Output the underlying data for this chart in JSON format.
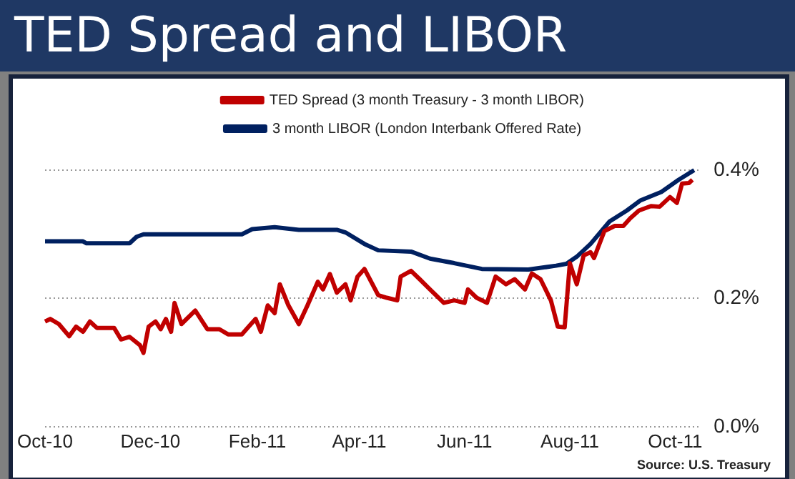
{
  "chart_data": {
    "type": "line",
    "title": "TED Spread and LIBOR",
    "legend": "top",
    "grid": "y",
    "marker": "none",
    "line_style": "solid",
    "xlim": [
      "2010-10-01",
      "2011-10-15"
    ],
    "xticks": [
      {
        "value": "2010-10-01",
        "label": "Oct-10"
      },
      {
        "value": "2010-12-01",
        "label": "Dec-10"
      },
      {
        "value": "2011-02-01",
        "label": "Feb-11"
      },
      {
        "value": "2011-04-01",
        "label": "Apr-11"
      },
      {
        "value": "2011-06-01",
        "label": "Jun-11"
      },
      {
        "value": "2011-08-01",
        "label": "Aug-11"
      },
      {
        "value": "2011-10-01",
        "label": "Oct-11"
      }
    ],
    "ylim": [
      0,
      0.4
    ],
    "yticks": [
      {
        "value": 0,
        "label": "0.0%"
      },
      {
        "value": 0.2,
        "label": "0.2%"
      },
      {
        "value": 0.4,
        "label": "0.4%"
      }
    ],
    "annotations": [
      "Source:  U.S. Treasury"
    ],
    "series": [
      {
        "name": "TED Spread (3 month Treasury - 3 month LIBOR)",
        "color": "#c00000",
        "x": [
          "2010-10-01",
          "2010-10-04",
          "2010-10-09",
          "2010-10-15",
          "2010-10-19",
          "2010-10-23",
          "2010-10-27",
          "2010-10-31",
          "2010-11-10",
          "2010-11-14",
          "2010-11-19",
          "2010-11-25",
          "2010-11-27",
          "2010-11-30",
          "2010-12-04",
          "2010-12-07",
          "2010-12-10",
          "2010-12-13",
          "2010-12-15",
          "2010-12-19",
          "2010-12-27",
          "2011-01-03",
          "2011-01-10",
          "2011-01-15",
          "2011-01-23",
          "2011-01-27",
          "2011-01-31",
          "2011-02-03",
          "2011-02-07",
          "2011-02-11",
          "2011-02-14",
          "2011-02-19",
          "2011-02-25",
          "2011-03-02",
          "2011-03-08",
          "2011-03-11",
          "2011-03-15",
          "2011-03-19",
          "2011-03-24",
          "2011-03-27",
          "2011-03-31",
          "2011-04-04",
          "2011-04-12",
          "2011-04-17",
          "2011-04-23",
          "2011-04-25",
          "2011-05-01",
          "2011-05-06",
          "2011-05-12",
          "2011-05-20",
          "2011-05-26",
          "2011-06-01",
          "2011-06-03",
          "2011-06-08",
          "2011-06-14",
          "2011-06-19",
          "2011-06-25",
          "2011-06-30",
          "2011-07-06",
          "2011-07-10",
          "2011-07-15",
          "2011-07-21",
          "2011-07-25",
          "2011-07-29",
          "2011-08-01",
          "2011-08-05",
          "2011-08-09",
          "2011-08-13",
          "2011-08-15",
          "2011-08-21",
          "2011-08-27",
          "2011-09-01",
          "2011-09-05",
          "2011-09-10",
          "2011-09-17",
          "2011-09-22",
          "2011-09-28",
          "2011-10-02",
          "2011-10-05",
          "2011-10-09",
          "2011-10-11"
        ],
        "values": [
          0.164,
          0.168,
          0.16,
          0.141,
          0.156,
          0.148,
          0.164,
          0.154,
          0.154,
          0.136,
          0.14,
          0.127,
          0.115,
          0.156,
          0.164,
          0.152,
          0.168,
          0.148,
          0.193,
          0.16,
          0.181,
          0.152,
          0.152,
          0.144,
          0.144,
          0.156,
          0.168,
          0.148,
          0.189,
          0.177,
          0.222,
          0.189,
          0.16,
          0.189,
          0.226,
          0.214,
          0.238,
          0.209,
          0.222,
          0.197,
          0.234,
          0.246,
          0.205,
          0.201,
          0.197,
          0.234,
          0.243,
          0.23,
          0.214,
          0.193,
          0.197,
          0.193,
          0.214,
          0.201,
          0.193,
          0.234,
          0.222,
          0.23,
          0.214,
          0.239,
          0.23,
          0.197,
          0.156,
          0.155,
          0.255,
          0.222,
          0.267,
          0.272,
          0.263,
          0.305,
          0.313,
          0.313,
          0.325,
          0.337,
          0.344,
          0.343,
          0.358,
          0.349,
          0.379,
          0.38,
          0.385
        ]
      },
      {
        "name": "3 month LIBOR (London Interbank Offered Rate)",
        "color": "#002060",
        "x": [
          "2010-10-01",
          "2010-10-23",
          "2010-10-25",
          "2010-11-19",
          "2010-11-23",
          "2010-11-27",
          "2011-01-23",
          "2011-01-29",
          "2011-02-11",
          "2011-02-25",
          "2011-03-19",
          "2011-03-24",
          "2011-04-04",
          "2011-04-12",
          "2011-05-01",
          "2011-05-12",
          "2011-05-26",
          "2011-06-11",
          "2011-07-08",
          "2011-07-24",
          "2011-07-30",
          "2011-08-05",
          "2011-08-13",
          "2011-08-24",
          "2011-09-03",
          "2011-09-11",
          "2011-09-23",
          "2011-10-03",
          "2011-10-12"
        ],
        "values": [
          0.289,
          0.289,
          0.286,
          0.286,
          0.296,
          0.3,
          0.3,
          0.308,
          0.311,
          0.307,
          0.307,
          0.303,
          0.285,
          0.275,
          0.273,
          0.262,
          0.255,
          0.246,
          0.245,
          0.251,
          0.254,
          0.265,
          0.285,
          0.32,
          0.337,
          0.353,
          0.366,
          0.385,
          0.4
        ]
      }
    ]
  }
}
